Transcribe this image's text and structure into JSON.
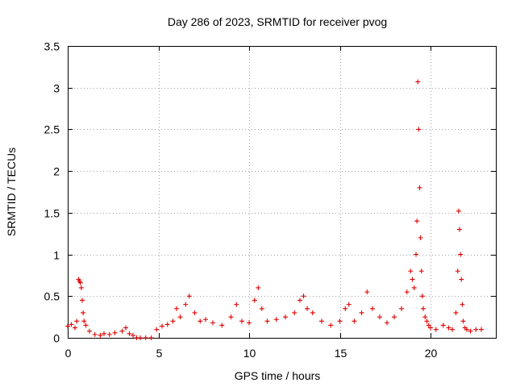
{
  "chart_data": {
    "type": "scatter",
    "title": "Day 286 of 2023, SRMTID for receiver pvog",
    "xlabel": "GPS time / hours",
    "ylabel": "SRMTID / TECUs",
    "xlim": [
      0,
      23.6
    ],
    "ylim": [
      0,
      3.5
    ],
    "xticks": [
      0,
      5,
      10,
      15,
      20
    ],
    "xtick_labels": [
      "0",
      "5",
      "10",
      "15",
      "20"
    ],
    "yticks": [
      0,
      0.5,
      1,
      1.5,
      2,
      2.5,
      3,
      3.5
    ],
    "ytick_labels": [
      "0",
      "0.5",
      "1",
      "1.5",
      "2",
      "2.5",
      "3",
      "3.5"
    ],
    "grid": true,
    "marker": "+",
    "series": [
      {
        "name": "SRMTID",
        "color": "#e00000",
        "x": [
          0.0,
          0.2,
          0.4,
          0.5,
          0.6,
          0.65,
          0.7,
          0.75,
          0.8,
          0.85,
          0.9,
          1.0,
          1.2,
          1.5,
          1.8,
          2.0,
          2.3,
          2.6,
          3.0,
          3.2,
          3.4,
          3.6,
          3.8,
          4.0,
          4.3,
          4.6,
          4.9,
          5.2,
          5.5,
          5.8,
          6.0,
          6.2,
          6.5,
          6.7,
          7.0,
          7.3,
          7.6,
          8.0,
          8.5,
          9.0,
          9.3,
          9.6,
          10.0,
          10.3,
          10.5,
          10.7,
          11.0,
          11.5,
          12.0,
          12.5,
          12.8,
          13.0,
          13.2,
          13.5,
          14.0,
          14.5,
          15.0,
          15.3,
          15.5,
          15.8,
          16.2,
          16.5,
          16.8,
          17.2,
          17.6,
          18.0,
          18.4,
          18.7,
          18.9,
          19.0,
          19.1,
          19.2,
          19.25,
          19.3,
          19.35,
          19.4,
          19.45,
          19.5,
          19.55,
          19.6,
          19.7,
          19.8,
          19.9,
          20.0,
          20.3,
          20.7,
          21.0,
          21.2,
          21.4,
          21.5,
          21.55,
          21.6,
          21.65,
          21.7,
          21.75,
          21.8,
          21.9,
          22.0,
          22.2,
          22.5,
          22.8
        ],
        "y": [
          0.14,
          0.16,
          0.12,
          0.2,
          0.7,
          0.68,
          0.66,
          0.6,
          0.45,
          0.3,
          0.2,
          0.15,
          0.08,
          0.04,
          0.03,
          0.05,
          0.04,
          0.06,
          0.08,
          0.12,
          0.05,
          0.03,
          0.0,
          0.0,
          0.0,
          0.0,
          0.1,
          0.14,
          0.16,
          0.2,
          0.35,
          0.25,
          0.4,
          0.5,
          0.3,
          0.2,
          0.22,
          0.18,
          0.15,
          0.25,
          0.4,
          0.2,
          0.18,
          0.45,
          0.6,
          0.35,
          0.2,
          0.22,
          0.25,
          0.3,
          0.45,
          0.5,
          0.35,
          0.3,
          0.2,
          0.15,
          0.2,
          0.35,
          0.4,
          0.2,
          0.3,
          0.55,
          0.35,
          0.25,
          0.18,
          0.25,
          0.35,
          0.55,
          0.8,
          0.7,
          0.6,
          1.0,
          1.4,
          3.07,
          2.5,
          1.8,
          1.2,
          0.8,
          0.5,
          0.35,
          0.25,
          0.2,
          0.15,
          0.12,
          0.1,
          0.15,
          0.12,
          0.1,
          0.3,
          0.8,
          1.52,
          1.3,
          1.0,
          0.7,
          0.4,
          0.2,
          0.12,
          0.1,
          0.08,
          0.1,
          0.1
        ]
      }
    ]
  }
}
